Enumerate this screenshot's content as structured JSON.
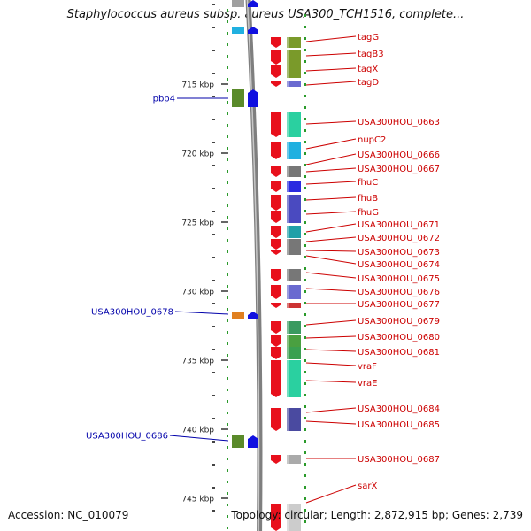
{
  "header": {
    "title": "Staphylococcus aureus subsp. aureus USA300_TCH1516, complete..."
  },
  "footer": {
    "accession": "Accession: NC_010079",
    "topology": "Topology: circular; Length: 2,872,915 bp; Genes: 2,739"
  },
  "axis": {
    "ticks": [
      "715 kbp",
      "720 kbp",
      "725 kbp",
      "730 kbp",
      "735 kbp",
      "740 kbp",
      "745 kbp"
    ]
  },
  "genes_right": [
    "tagG",
    "tagB3",
    "tagX",
    "tagD",
    "USA300HOU_0663",
    "nupC2",
    "USA300HOU_0666",
    "USA300HOU_0667",
    "fhuC",
    "fhuB",
    "fhuG",
    "USA300HOU_0671",
    "USA300HOU_0672",
    "USA300HOU_0673",
    "USA300HOU_0674",
    "USA300HOU_0675",
    "USA300HOU_0676",
    "USA300HOU_0677",
    "USA300HOU_0679",
    "USA300HOU_0680",
    "USA300HOU_0681",
    "vraF",
    "vraE",
    "USA300HOU_0684",
    "USA300HOU_0685",
    "USA300HOU_0687",
    "sarX"
  ],
  "genes_left": [
    "pbp4",
    "USA300HOU_0678",
    "USA300HOU_0686"
  ],
  "colors": {
    "forward_strand": "#e8101c",
    "reverse_strand": "#1010e0",
    "right_label": "#cc0000",
    "left_label": "#0000aa",
    "backbone": "#888888",
    "tick_dots": "#2a9a2a"
  }
}
